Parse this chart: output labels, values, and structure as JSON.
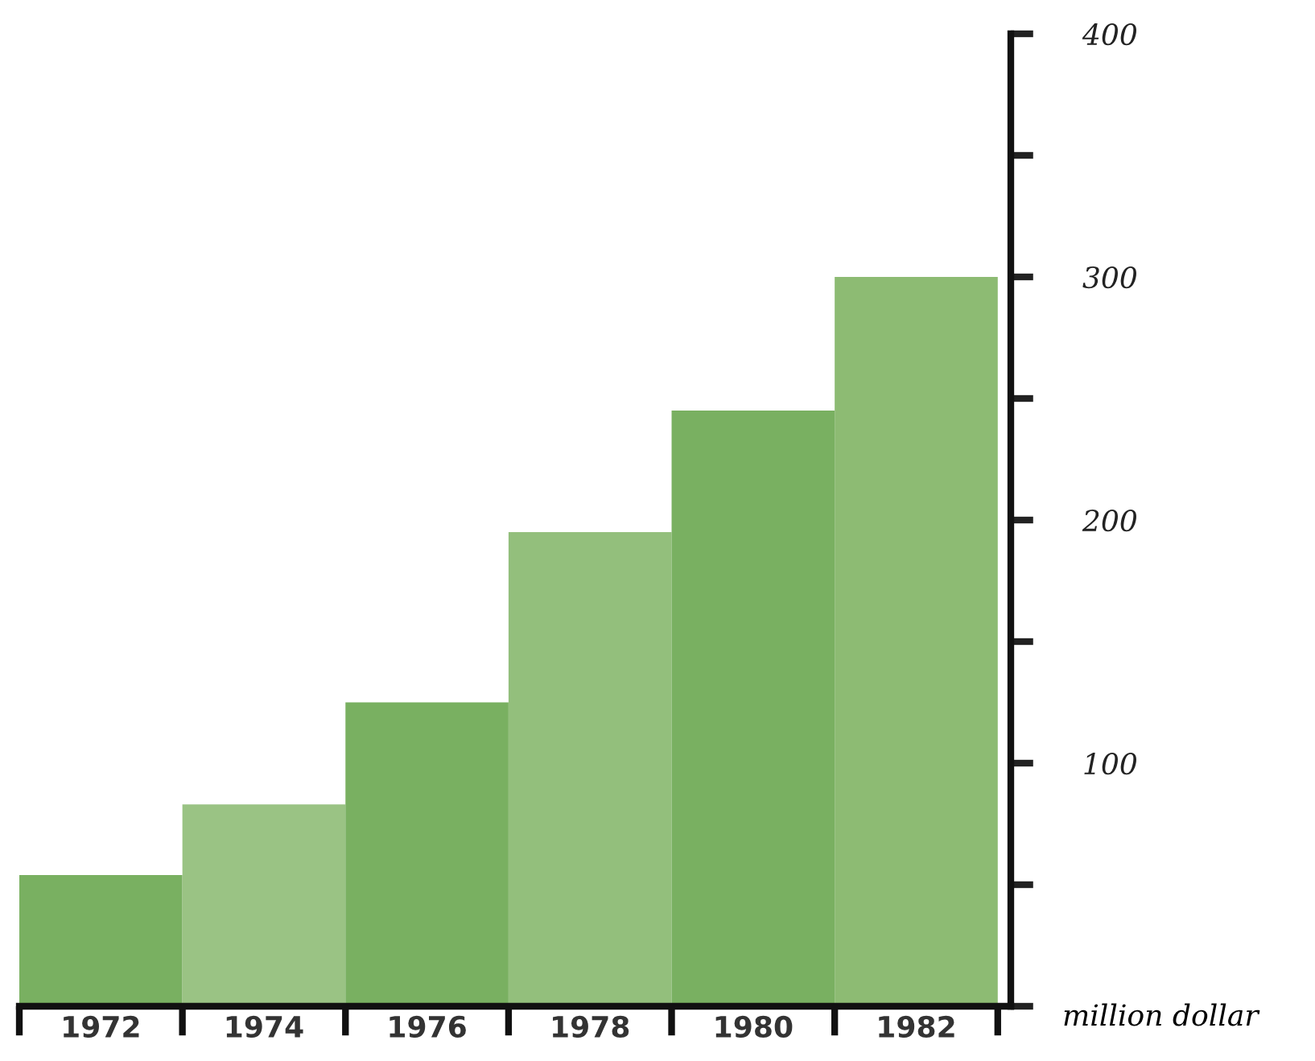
{
  "chart_data": {
    "type": "bar",
    "categories": [
      "1972",
      "1974",
      "1976",
      "1978",
      "1980",
      "1982"
    ],
    "values": [
      54,
      83,
      125,
      195,
      245,
      300
    ],
    "colors": [
      "#79b061",
      "#9ac384",
      "#79b061",
      "#93bf7c",
      "#79b061",
      "#8dbb73"
    ],
    "ylabel": "million dollar",
    "ylim": [
      0,
      400
    ],
    "yticks": [
      {
        "value": 0,
        "label": null
      },
      {
        "value": 50,
        "label": null
      },
      100,
      {
        "value": 150,
        "label": null
      },
      200,
      {
        "value": 250,
        "label": null
      },
      300,
      {
        "value": 350,
        "label": null
      },
      400
    ],
    "grid": false
  }
}
